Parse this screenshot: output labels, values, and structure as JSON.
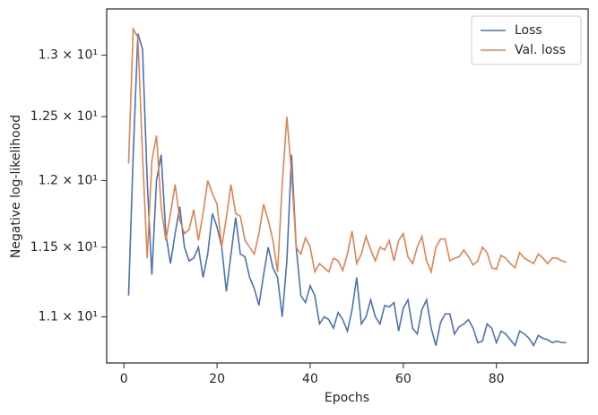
{
  "chart_data": {
    "type": "line",
    "x": [
      1,
      2,
      3,
      4,
      5,
      6,
      7,
      8,
      9,
      10,
      11,
      12,
      13,
      14,
      15,
      16,
      17,
      18,
      19,
      20,
      21,
      22,
      23,
      24,
      25,
      26,
      27,
      28,
      29,
      30,
      31,
      32,
      33,
      34,
      35,
      36,
      37,
      38,
      39,
      40,
      41,
      42,
      43,
      44,
      45,
      46,
      47,
      48,
      49,
      50,
      51,
      52,
      53,
      54,
      55,
      56,
      57,
      58,
      59,
      60,
      61,
      62,
      63,
      64,
      65,
      66,
      67,
      68,
      69,
      70,
      71,
      72,
      73,
      74,
      75,
      76,
      77,
      78,
      79,
      80,
      81,
      82,
      83,
      84,
      85,
      86,
      87,
      88,
      89,
      90,
      91,
      92,
      93,
      94,
      95
    ],
    "series": [
      {
        "name": "Loss",
        "color": "#4c72b0",
        "values": [
          11.15,
          12.2,
          13.18,
          13.05,
          12.0,
          11.3,
          12.0,
          12.2,
          11.6,
          11.38,
          11.6,
          11.8,
          11.5,
          11.4,
          11.42,
          11.5,
          11.28,
          11.45,
          11.75,
          11.65,
          11.5,
          11.18,
          11.45,
          11.72,
          11.45,
          11.43,
          11.28,
          11.2,
          11.08,
          11.3,
          11.5,
          11.35,
          11.28,
          11.0,
          11.4,
          12.2,
          11.5,
          11.15,
          11.1,
          11.22,
          11.15,
          10.95,
          11.0,
          10.98,
          10.92,
          11.03,
          10.98,
          10.9,
          11.05,
          11.28,
          10.95,
          11.0,
          11.12,
          11.0,
          10.95,
          11.08,
          11.07,
          11.1,
          10.9,
          11.06,
          11.12,
          10.92,
          10.88,
          11.05,
          11.12,
          10.92,
          10.8,
          10.96,
          11.02,
          11.02,
          10.88,
          10.93,
          10.95,
          10.98,
          10.92,
          10.82,
          10.83,
          10.95,
          10.92,
          10.82,
          10.9,
          10.88,
          10.84,
          10.8,
          10.9,
          10.88,
          10.85,
          10.8,
          10.87,
          10.85,
          10.84,
          10.82,
          10.83,
          10.82,
          10.82
        ]
      },
      {
        "name": "Val. loss",
        "color": "#dd8452",
        "values": [
          12.13,
          13.22,
          13.15,
          12.2,
          11.42,
          12.15,
          12.35,
          11.8,
          11.55,
          11.75,
          11.97,
          11.7,
          11.6,
          11.63,
          11.78,
          11.55,
          11.75,
          12.0,
          11.9,
          11.82,
          11.5,
          11.72,
          11.97,
          11.75,
          11.73,
          11.55,
          11.5,
          11.45,
          11.6,
          11.82,
          11.7,
          11.55,
          11.32,
          11.97,
          12.5,
          12.05,
          11.5,
          11.45,
          11.57,
          11.5,
          11.32,
          11.38,
          11.35,
          11.32,
          11.42,
          11.4,
          11.33,
          11.45,
          11.62,
          11.38,
          11.45,
          11.58,
          11.48,
          11.4,
          11.5,
          11.48,
          11.55,
          11.4,
          11.55,
          11.6,
          11.43,
          11.38,
          11.5,
          11.58,
          11.4,
          11.32,
          11.5,
          11.56,
          11.56,
          11.4,
          11.42,
          11.43,
          11.48,
          11.43,
          11.37,
          11.4,
          11.5,
          11.46,
          11.35,
          11.34,
          11.44,
          11.42,
          11.38,
          11.35,
          11.46,
          11.42,
          11.4,
          11.38,
          11.45,
          11.42,
          11.38,
          11.42,
          11.42,
          11.4,
          11.39
        ]
      }
    ],
    "xlabel": "Epochs",
    "ylabel": "Negative log-likelihood",
    "xlim": [
      -3.7,
      99.7
    ],
    "xticks": [
      0,
      20,
      40,
      60,
      80
    ],
    "ylim": [
      10.68,
      13.39
    ],
    "ylog": true,
    "yticks": [
      {
        "value": 11,
        "label": "1.1 × 10¹"
      },
      {
        "value": 11.5,
        "label": "1.15 × 10¹"
      },
      {
        "value": 12,
        "label": "1.2 × 10¹"
      },
      {
        "value": 12.5,
        "label": "1.25 × 10¹"
      },
      {
        "value": 13,
        "label": "1.3 × 10¹"
      }
    ],
    "grid": false,
    "legend": "upper right"
  }
}
